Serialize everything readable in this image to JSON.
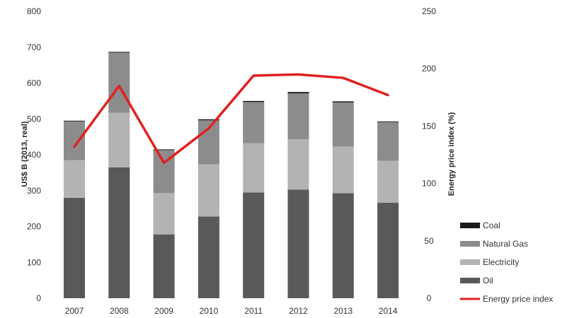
{
  "chart_data": {
    "type": "bar",
    "stacked": true,
    "categories": [
      "2007",
      "2008",
      "2009",
      "2010",
      "2011",
      "2012",
      "2013",
      "2014"
    ],
    "series": [
      {
        "name": "Oil",
        "color": "#595959",
        "axis": "left",
        "values": [
          280,
          365,
          178,
          228,
          295,
          303,
          293,
          266
        ]
      },
      {
        "name": "Electricity",
        "color": "#b3b3b3",
        "axis": "left",
        "values": [
          105,
          152,
          115,
          145,
          137,
          140,
          130,
          117
        ]
      },
      {
        "name": "Natural Gas",
        "color": "#8c8c8c",
        "axis": "left",
        "values": [
          108,
          168,
          120,
          123,
          115,
          128,
          123,
          108
        ]
      },
      {
        "name": "Coal",
        "color": "#1a1a1a",
        "axis": "left",
        "values": [
          2,
          2,
          2,
          3,
          3,
          4,
          3,
          2
        ]
      },
      {
        "name": "Energy price index",
        "type": "line",
        "color": "#e02020",
        "axis": "right",
        "values": [
          132,
          185,
          118,
          148,
          194,
          195,
          192,
          177
        ]
      }
    ],
    "ylabel": "US$ B (2013, real)",
    "ylim": [
      0,
      800
    ],
    "yticks": [
      "0",
      "100",
      "200",
      "300",
      "400",
      "500",
      "600",
      "700",
      "800"
    ],
    "y2label": "Energy price index (%)",
    "y2lim": [
      0,
      250
    ],
    "y2ticks": [
      "0",
      "50",
      "100",
      "150",
      "200",
      "250"
    ],
    "legend_order": [
      "Coal",
      "Natural Gas",
      "Electricity",
      "Oil",
      "Energy price index"
    ],
    "legend_position": "bottom-right",
    "grid": false
  }
}
